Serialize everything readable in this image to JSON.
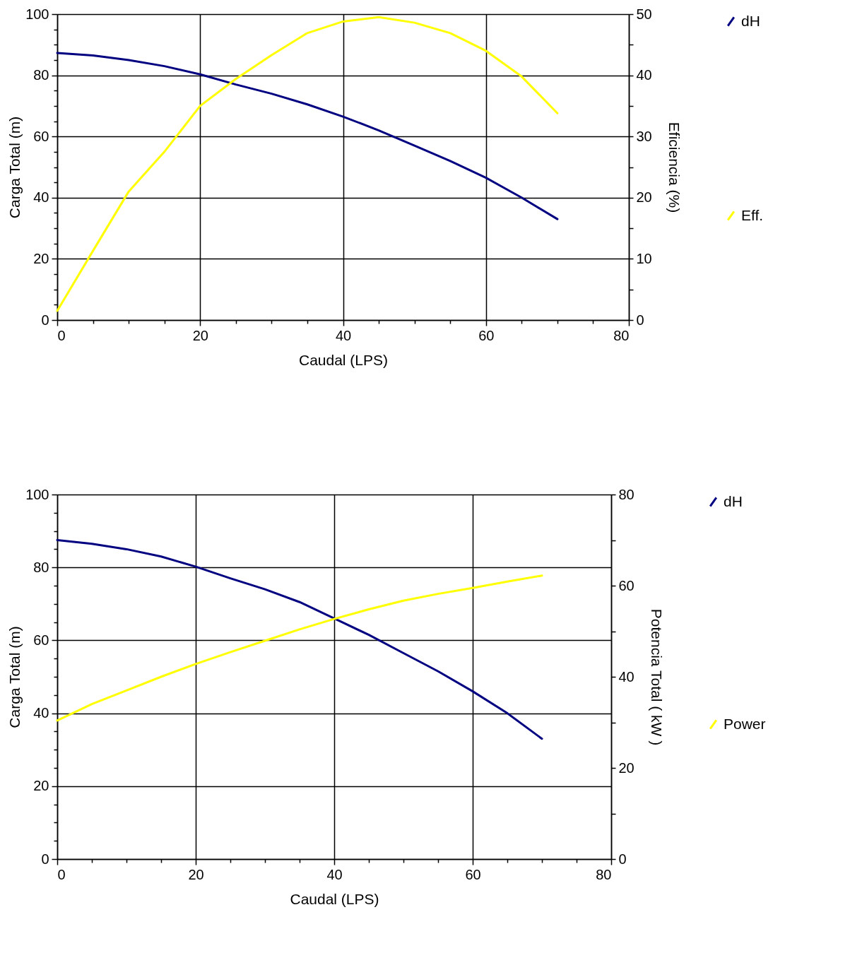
{
  "chart_data": [
    {
      "type": "line",
      "xlabel": "Caudal (LPS)",
      "ylabel": "Carga Total (m)",
      "y2label": "Eficiencia (%)",
      "grid": true,
      "legend": "right",
      "x": [
        0,
        5,
        10,
        15,
        20,
        25,
        30,
        35,
        40,
        45,
        50,
        55,
        60,
        65,
        70
      ],
      "xlim": [
        0,
        80
      ],
      "xticks": [
        0,
        {
          "value": 5,
          "label": null
        },
        {
          "value": 10,
          "label": null
        },
        {
          "value": 15,
          "label": null
        },
        20,
        {
          "value": 25,
          "label": null
        },
        {
          "value": 30,
          "label": null
        },
        {
          "value": 35,
          "label": null
        },
        40,
        {
          "value": 45,
          "label": null
        },
        {
          "value": 50,
          "label": null
        },
        {
          "value": 55,
          "label": null
        },
        60,
        {
          "value": 65,
          "label": null
        },
        {
          "value": 70,
          "label": null
        },
        {
          "value": 75,
          "label": null
        },
        80
      ],
      "ylim": [
        0,
        100
      ],
      "yticks": [
        0,
        {
          "value": 5,
          "label": null
        },
        {
          "value": 10,
          "label": null
        },
        {
          "value": 15,
          "label": null
        },
        20,
        {
          "value": 25,
          "label": null
        },
        {
          "value": 30,
          "label": null
        },
        {
          "value": 35,
          "label": null
        },
        40,
        {
          "value": 45,
          "label": null
        },
        {
          "value": 50,
          "label": null
        },
        {
          "value": 55,
          "label": null
        },
        60,
        {
          "value": 65,
          "label": null
        },
        {
          "value": 70,
          "label": null
        },
        {
          "value": 75,
          "label": null
        },
        80,
        {
          "value": 85,
          "label": null
        },
        {
          "value": 90,
          "label": null
        },
        {
          "value": 95,
          "label": null
        },
        100
      ],
      "y2lim": [
        0,
        50
      ],
      "y2ticks": [
        0,
        {
          "value": 5,
          "label": null
        },
        10,
        {
          "value": 15,
          "label": null
        },
        20,
        {
          "value": 25,
          "label": null
        },
        30,
        {
          "value": 35,
          "label": null
        },
        40,
        {
          "value": 45,
          "label": null
        },
        50
      ],
      "series": [
        {
          "name": "dH",
          "color": "#000080",
          "values": [
            87.3,
            86.5,
            85,
            83,
            80.3,
            77,
            74,
            70.5,
            66.5,
            62,
            57,
            52,
            46.5,
            40,
            33
          ]
        },
        {
          "name": "Eff.",
          "color": "#ffff00",
          "axis": "y2",
          "values": [
            1.5,
            11.3,
            21,
            27.5,
            35,
            39.4,
            43.3,
            46.9,
            48.8,
            49.5,
            48.6,
            46.9,
            44,
            39.8,
            33.8
          ]
        }
      ]
    },
    {
      "type": "line",
      "xlabel": "Caudal (LPS)",
      "ylabel": "Carga Total (m)",
      "y2label": "Potencia Total ( kW )",
      "grid": true,
      "legend": "right",
      "x": [
        0,
        5,
        10,
        15,
        20,
        25,
        30,
        35,
        40,
        45,
        50,
        55,
        60,
        65,
        70
      ],
      "xlim": [
        0,
        80
      ],
      "xticks": [
        0,
        {
          "value": 5,
          "label": null
        },
        {
          "value": 10,
          "label": null
        },
        {
          "value": 15,
          "label": null
        },
        20,
        {
          "value": 25,
          "label": null
        },
        {
          "value": 30,
          "label": null
        },
        {
          "value": 35,
          "label": null
        },
        40,
        {
          "value": 45,
          "label": null
        },
        {
          "value": 50,
          "label": null
        },
        {
          "value": 55,
          "label": null
        },
        60,
        {
          "value": 65,
          "label": null
        },
        {
          "value": 70,
          "label": null
        },
        {
          "value": 75,
          "label": null
        },
        80
      ],
      "ylim": [
        0,
        100
      ],
      "yticks": [
        0,
        {
          "value": 5,
          "label": null
        },
        {
          "value": 10,
          "label": null
        },
        {
          "value": 15,
          "label": null
        },
        20,
        {
          "value": 25,
          "label": null
        },
        {
          "value": 30,
          "label": null
        },
        {
          "value": 35,
          "label": null
        },
        40,
        {
          "value": 45,
          "label": null
        },
        {
          "value": 50,
          "label": null
        },
        {
          "value": 55,
          "label": null
        },
        60,
        {
          "value": 65,
          "label": null
        },
        {
          "value": 70,
          "label": null
        },
        {
          "value": 75,
          "label": null
        },
        80,
        {
          "value": 85,
          "label": null
        },
        {
          "value": 90,
          "label": null
        },
        {
          "value": 95,
          "label": null
        },
        100
      ],
      "y2lim": [
        0,
        80
      ],
      "y2ticks": [
        0,
        {
          "value": 10,
          "label": null
        },
        20,
        {
          "value": 30,
          "label": null
        },
        40,
        {
          "value": 50,
          "label": null
        },
        60,
        {
          "value": 70,
          "label": null
        },
        80
      ],
      "series": [
        {
          "name": "dH",
          "color": "#000080",
          "values": [
            87.5,
            86.5,
            85,
            83,
            80.2,
            77,
            74,
            70.5,
            66,
            61.5,
            56.5,
            51.5,
            46,
            40,
            33
          ]
        },
        {
          "name": "Power",
          "color": "#ffff00",
          "axis": "y2",
          "values": [
            30.4,
            34,
            37,
            40,
            42.8,
            45.4,
            47.9,
            50.4,
            52.7,
            54.8,
            56.7,
            58.2,
            59.5,
            60.9,
            62.2
          ]
        }
      ]
    }
  ]
}
